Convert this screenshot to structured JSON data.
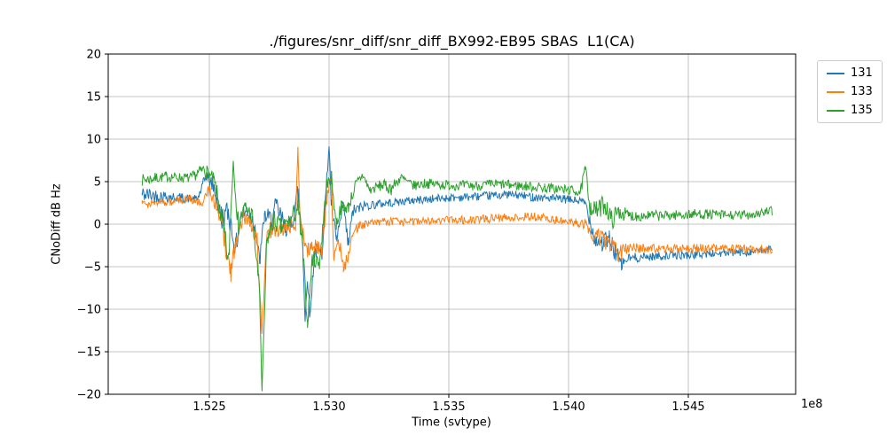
{
  "chart_data": {
    "type": "line",
    "title": "./figures/snr_diff/snr_diff_BX992-EB95 SBAS  L1(CA)",
    "xlabel": "Time (svtype)",
    "ylabel": "CNoDiff dB Hz",
    "x_offset_text": "1e8",
    "x_unit": "1e8",
    "xlim": [
      1.52078,
      1.54948
    ],
    "ylim": [
      -20,
      20
    ],
    "xticks": [
      1.525,
      1.53,
      1.535,
      1.54,
      1.545
    ],
    "xtick_labels": [
      "1.525",
      "1.530",
      "1.535",
      "1.540",
      "1.545"
    ],
    "yticks": [
      -20,
      -15,
      -10,
      -5,
      0,
      5,
      10,
      15,
      20
    ],
    "grid": true,
    "legend_position": "outside-top-right",
    "sample_step": 3e-05,
    "colors": {
      "grid": "#b0b0b0",
      "axis": "#000000",
      "text": "#000000",
      "background": "#ffffff"
    },
    "series": [
      {
        "name": "131",
        "color": "#1f77b4",
        "seed": 42,
        "keypoints": [
          [
            1.5222,
            3.5,
            1.0
          ],
          [
            1.5235,
            3.2,
            0.6
          ],
          [
            1.5245,
            2.9,
            0.5
          ],
          [
            1.5249,
            5.8,
            0.8
          ],
          [
            1.5252,
            4.3,
            1.0
          ],
          [
            1.5255,
            0.5,
            1.5
          ],
          [
            1.5258,
            1.5,
            1.5
          ],
          [
            1.5261,
            -3.0,
            1.5
          ],
          [
            1.5263,
            1.0,
            1.0
          ],
          [
            1.5266,
            1.5,
            1.0
          ],
          [
            1.5269,
            0.0,
            1.0
          ],
          [
            1.5271,
            -4.5,
            1.0
          ],
          [
            1.5273,
            1.0,
            1.0
          ],
          [
            1.5276,
            0.5,
            1.2
          ],
          [
            1.5278,
            2.0,
            1.5
          ],
          [
            1.5282,
            -0.5,
            1.0
          ],
          [
            1.5285,
            0.5,
            1.0
          ],
          [
            1.5287,
            4.0,
            1.5
          ],
          [
            1.5289,
            -2.0,
            1.5
          ],
          [
            1.529,
            -11.5,
            0.5
          ],
          [
            1.5291,
            -6.0,
            1.0
          ],
          [
            1.5292,
            -11.0,
            0.5
          ],
          [
            1.5294,
            -3.0,
            1.0
          ],
          [
            1.5297,
            -3.5,
            0.8
          ],
          [
            1.53,
            9.3,
            0.4
          ],
          [
            1.5301,
            2.0,
            1.0
          ],
          [
            1.5303,
            -2.0,
            1.2
          ],
          [
            1.5306,
            2.0,
            1.0
          ],
          [
            1.5308,
            -2.5,
            1.2
          ],
          [
            1.531,
            1.5,
            0.8
          ],
          [
            1.5315,
            2.2,
            0.6
          ],
          [
            1.5325,
            2.5,
            0.5
          ],
          [
            1.5335,
            2.8,
            0.5
          ],
          [
            1.535,
            3.1,
            0.5
          ],
          [
            1.5365,
            3.3,
            0.5
          ],
          [
            1.5375,
            3.5,
            0.5
          ],
          [
            1.5385,
            3.2,
            0.5
          ],
          [
            1.5395,
            3.0,
            0.5
          ],
          [
            1.5403,
            2.8,
            0.5
          ],
          [
            1.5407,
            2.5,
            0.6
          ],
          [
            1.5409,
            0.5,
            1.0
          ],
          [
            1.5411,
            -1.8,
            1.0
          ],
          [
            1.5414,
            -2.2,
            1.2
          ],
          [
            1.5417,
            -1.8,
            1.2
          ],
          [
            1.542,
            -3.5,
            1.2
          ],
          [
            1.5422,
            -4.8,
            0.8
          ],
          [
            1.5425,
            -4.0,
            0.6
          ],
          [
            1.5435,
            -3.8,
            0.5
          ],
          [
            1.545,
            -3.6,
            0.5
          ],
          [
            1.5465,
            -3.4,
            0.5
          ],
          [
            1.5478,
            -3.2,
            0.5
          ],
          [
            1.5485,
            -3.0,
            0.5
          ]
        ]
      },
      {
        "name": "133",
        "color": "#ff7f0e",
        "seed": 133,
        "keypoints": [
          [
            1.5222,
            2.3,
            0.5
          ],
          [
            1.5232,
            2.6,
            0.5
          ],
          [
            1.5242,
            3.0,
            0.5
          ],
          [
            1.5247,
            2.5,
            0.5
          ],
          [
            1.525,
            4.0,
            0.8
          ],
          [
            1.5253,
            2.0,
            1.0
          ],
          [
            1.5256,
            -1.0,
            1.5
          ],
          [
            1.5259,
            -6.0,
            1.5
          ],
          [
            1.5261,
            -2.0,
            1.0
          ],
          [
            1.5264,
            1.0,
            1.0
          ],
          [
            1.5267,
            0.5,
            1.0
          ],
          [
            1.527,
            -2.0,
            1.0
          ],
          [
            1.5272,
            -12.5,
            0.8
          ],
          [
            1.5274,
            -1.0,
            1.0
          ],
          [
            1.5277,
            -0.5,
            1.2
          ],
          [
            1.528,
            -1.0,
            1.0
          ],
          [
            1.5283,
            -0.5,
            1.0
          ],
          [
            1.5286,
            0.0,
            1.0
          ],
          [
            1.5287,
            9.3,
            0.3
          ],
          [
            1.5288,
            0.0,
            1.0
          ],
          [
            1.5291,
            -3.0,
            1.0
          ],
          [
            1.5294,
            -2.5,
            1.0
          ],
          [
            1.5297,
            -3.0,
            0.8
          ],
          [
            1.5299,
            3.0,
            1.0
          ],
          [
            1.5301,
            5.8,
            0.5
          ],
          [
            1.5302,
            -4.5,
            1.0
          ],
          [
            1.5304,
            -1.5,
            1.0
          ],
          [
            1.5306,
            -5.0,
            0.8
          ],
          [
            1.5308,
            -4.0,
            0.8
          ],
          [
            1.531,
            -0.5,
            0.8
          ],
          [
            1.5315,
            0.0,
            0.5
          ],
          [
            1.5325,
            0.3,
            0.5
          ],
          [
            1.5335,
            0.2,
            0.5
          ],
          [
            1.5345,
            0.4,
            0.5
          ],
          [
            1.5355,
            0.5,
            0.5
          ],
          [
            1.5365,
            0.6,
            0.5
          ],
          [
            1.5375,
            0.8,
            0.5
          ],
          [
            1.5385,
            0.9,
            0.5
          ],
          [
            1.5395,
            0.5,
            0.5
          ],
          [
            1.5403,
            0.2,
            0.5
          ],
          [
            1.5407,
            0.0,
            0.6
          ],
          [
            1.5409,
            -1.0,
            0.8
          ],
          [
            1.5412,
            -1.5,
            1.0
          ],
          [
            1.5415,
            -2.0,
            1.0
          ],
          [
            1.5418,
            -2.5,
            1.0
          ],
          [
            1.5421,
            -3.5,
            1.0
          ],
          [
            1.5425,
            -2.8,
            0.6
          ],
          [
            1.544,
            -2.9,
            0.5
          ],
          [
            1.5455,
            -2.8,
            0.5
          ],
          [
            1.547,
            -2.9,
            0.5
          ],
          [
            1.5485,
            -3.0,
            0.5
          ]
        ]
      },
      {
        "name": "135",
        "color": "#2ca02c",
        "seed": 7,
        "keypoints": [
          [
            1.5222,
            5.2,
            0.7
          ],
          [
            1.5232,
            5.6,
            0.6
          ],
          [
            1.5242,
            5.4,
            0.6
          ],
          [
            1.5248,
            6.5,
            0.8
          ],
          [
            1.5252,
            5.0,
            1.0
          ],
          [
            1.5255,
            1.0,
            1.5
          ],
          [
            1.5258,
            -4.5,
            1.5
          ],
          [
            1.526,
            7.5,
            0.5
          ],
          [
            1.5262,
            0.0,
            1.5
          ],
          [
            1.5265,
            2.0,
            1.0
          ],
          [
            1.5268,
            1.0,
            1.0
          ],
          [
            1.5271,
            -8.0,
            1.0
          ],
          [
            1.5272,
            -19.8,
            0.2
          ],
          [
            1.5274,
            -2.0,
            1.0
          ],
          [
            1.5277,
            0.5,
            1.2
          ],
          [
            1.528,
            -0.5,
            1.2
          ],
          [
            1.5284,
            0.5,
            1.0
          ],
          [
            1.5287,
            2.0,
            1.5
          ],
          [
            1.5289,
            -3.0,
            1.5
          ],
          [
            1.5291,
            -11.8,
            0.5
          ],
          [
            1.5293,
            -4.0,
            1.0
          ],
          [
            1.5296,
            -4.5,
            1.0
          ],
          [
            1.5299,
            4.5,
            1.0
          ],
          [
            1.5301,
            5.5,
            0.8
          ],
          [
            1.5303,
            0.0,
            1.0
          ],
          [
            1.5305,
            2.0,
            0.8
          ],
          [
            1.5308,
            2.0,
            0.8
          ],
          [
            1.5311,
            4.5,
            0.8
          ],
          [
            1.5314,
            5.8,
            0.6
          ],
          [
            1.5317,
            4.0,
            0.6
          ],
          [
            1.5322,
            4.6,
            0.7
          ],
          [
            1.5326,
            4.2,
            0.8
          ],
          [
            1.533,
            5.5,
            0.6
          ],
          [
            1.5335,
            4.5,
            0.6
          ],
          [
            1.534,
            4.8,
            0.6
          ],
          [
            1.535,
            4.6,
            0.6
          ],
          [
            1.536,
            4.5,
            0.6
          ],
          [
            1.537,
            4.7,
            0.6
          ],
          [
            1.538,
            4.5,
            0.6
          ],
          [
            1.539,
            4.3,
            0.6
          ],
          [
            1.54,
            4.0,
            0.6
          ],
          [
            1.5405,
            3.8,
            0.6
          ],
          [
            1.5407,
            6.5,
            0.8
          ],
          [
            1.5409,
            2.0,
            1.0
          ],
          [
            1.5412,
            1.5,
            1.2
          ],
          [
            1.5415,
            2.5,
            1.2
          ],
          [
            1.5418,
            0.5,
            1.2
          ],
          [
            1.5421,
            1.5,
            1.0
          ],
          [
            1.5425,
            1.0,
            0.7
          ],
          [
            1.544,
            1.0,
            0.6
          ],
          [
            1.5455,
            1.2,
            0.6
          ],
          [
            1.547,
            1.0,
            0.6
          ],
          [
            1.548,
            1.3,
            0.6
          ],
          [
            1.5485,
            1.5,
            0.6
          ]
        ]
      }
    ]
  }
}
